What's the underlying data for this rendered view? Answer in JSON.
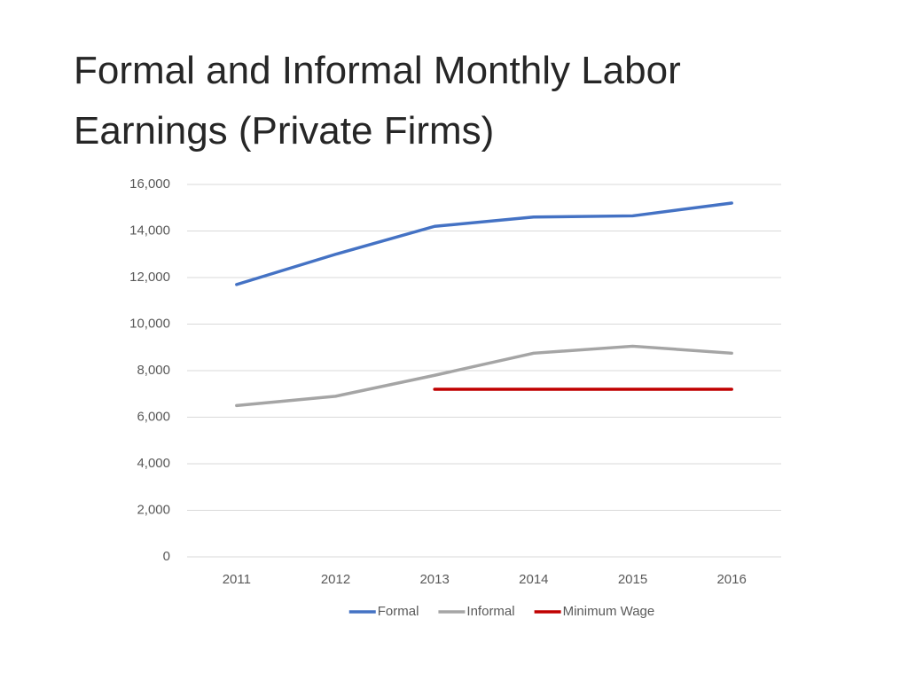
{
  "chart_data": {
    "type": "line",
    "title": "Formal and Informal Monthly Labor Earnings (Private Firms)",
    "categories": [
      "2011",
      "2012",
      "2013",
      "2014",
      "2015",
      "2016"
    ],
    "series": [
      {
        "name": "Formal",
        "color": "#4472c4",
        "values": [
          11700,
          13000,
          14200,
          14600,
          14650,
          15200
        ]
      },
      {
        "name": "Informal",
        "color": "#a5a5a5",
        "values": [
          6500,
          6900,
          7800,
          8750,
          9050,
          8750
        ]
      },
      {
        "name": "Minimum Wage",
        "color": "#c00000",
        "values": [
          null,
          null,
          7200,
          7200,
          7200,
          7200
        ]
      }
    ],
    "ylim": [
      0,
      16000
    ],
    "yticks": [
      0,
      {
        "value": 2000,
        "label": "2,000"
      },
      {
        "value": 4000,
        "label": "4,000"
      },
      {
        "value": 6000,
        "label": "6,000"
      },
      {
        "value": 8000,
        "label": "8,000"
      },
      {
        "value": 10000,
        "label": "10,000"
      },
      {
        "value": 12000,
        "label": "12,000"
      },
      {
        "value": 14000,
        "label": "14,000"
      },
      {
        "value": 16000,
        "label": "16,000"
      }
    ],
    "grid": true,
    "legend": "bottom"
  }
}
